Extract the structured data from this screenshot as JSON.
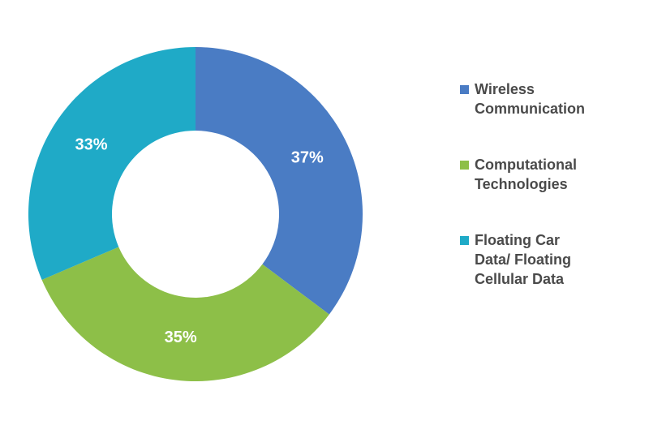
{
  "chart_data": {
    "type": "pie",
    "style": "donut",
    "categories": [
      "Wireless\nCommunication",
      "Computational\nTechnologies",
      "Floating Car\nData/ Floating\nCellular Data"
    ],
    "values": [
      37,
      35,
      33
    ],
    "value_labels": [
      "37%",
      "35%",
      "33%"
    ],
    "colors": [
      "#4A7CC4",
      "#8DBF48",
      "#1FAAC7"
    ],
    "legend_position": "right"
  }
}
